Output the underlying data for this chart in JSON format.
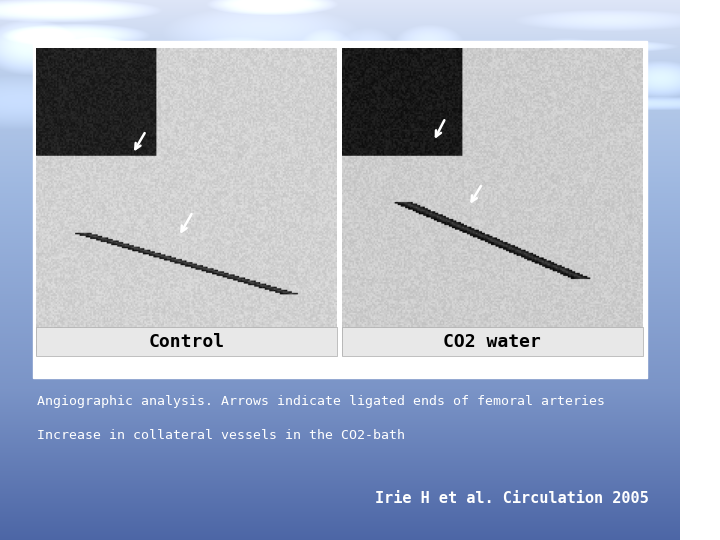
{
  "label_left": "Control",
  "label_right": "CO2 water",
  "caption_line1": "Angiographic analysis. Arrows indicate ligated ends of femoral arteries",
  "caption_line2": "Increase in collateral vessels in the CO2-bath",
  "citation": "Irie H et al. Circulation 2005",
  "caption_color": "#ffffff",
  "caption_fontsize": 9.5,
  "citation_fontsize": 11,
  "label_fontsize": 13
}
